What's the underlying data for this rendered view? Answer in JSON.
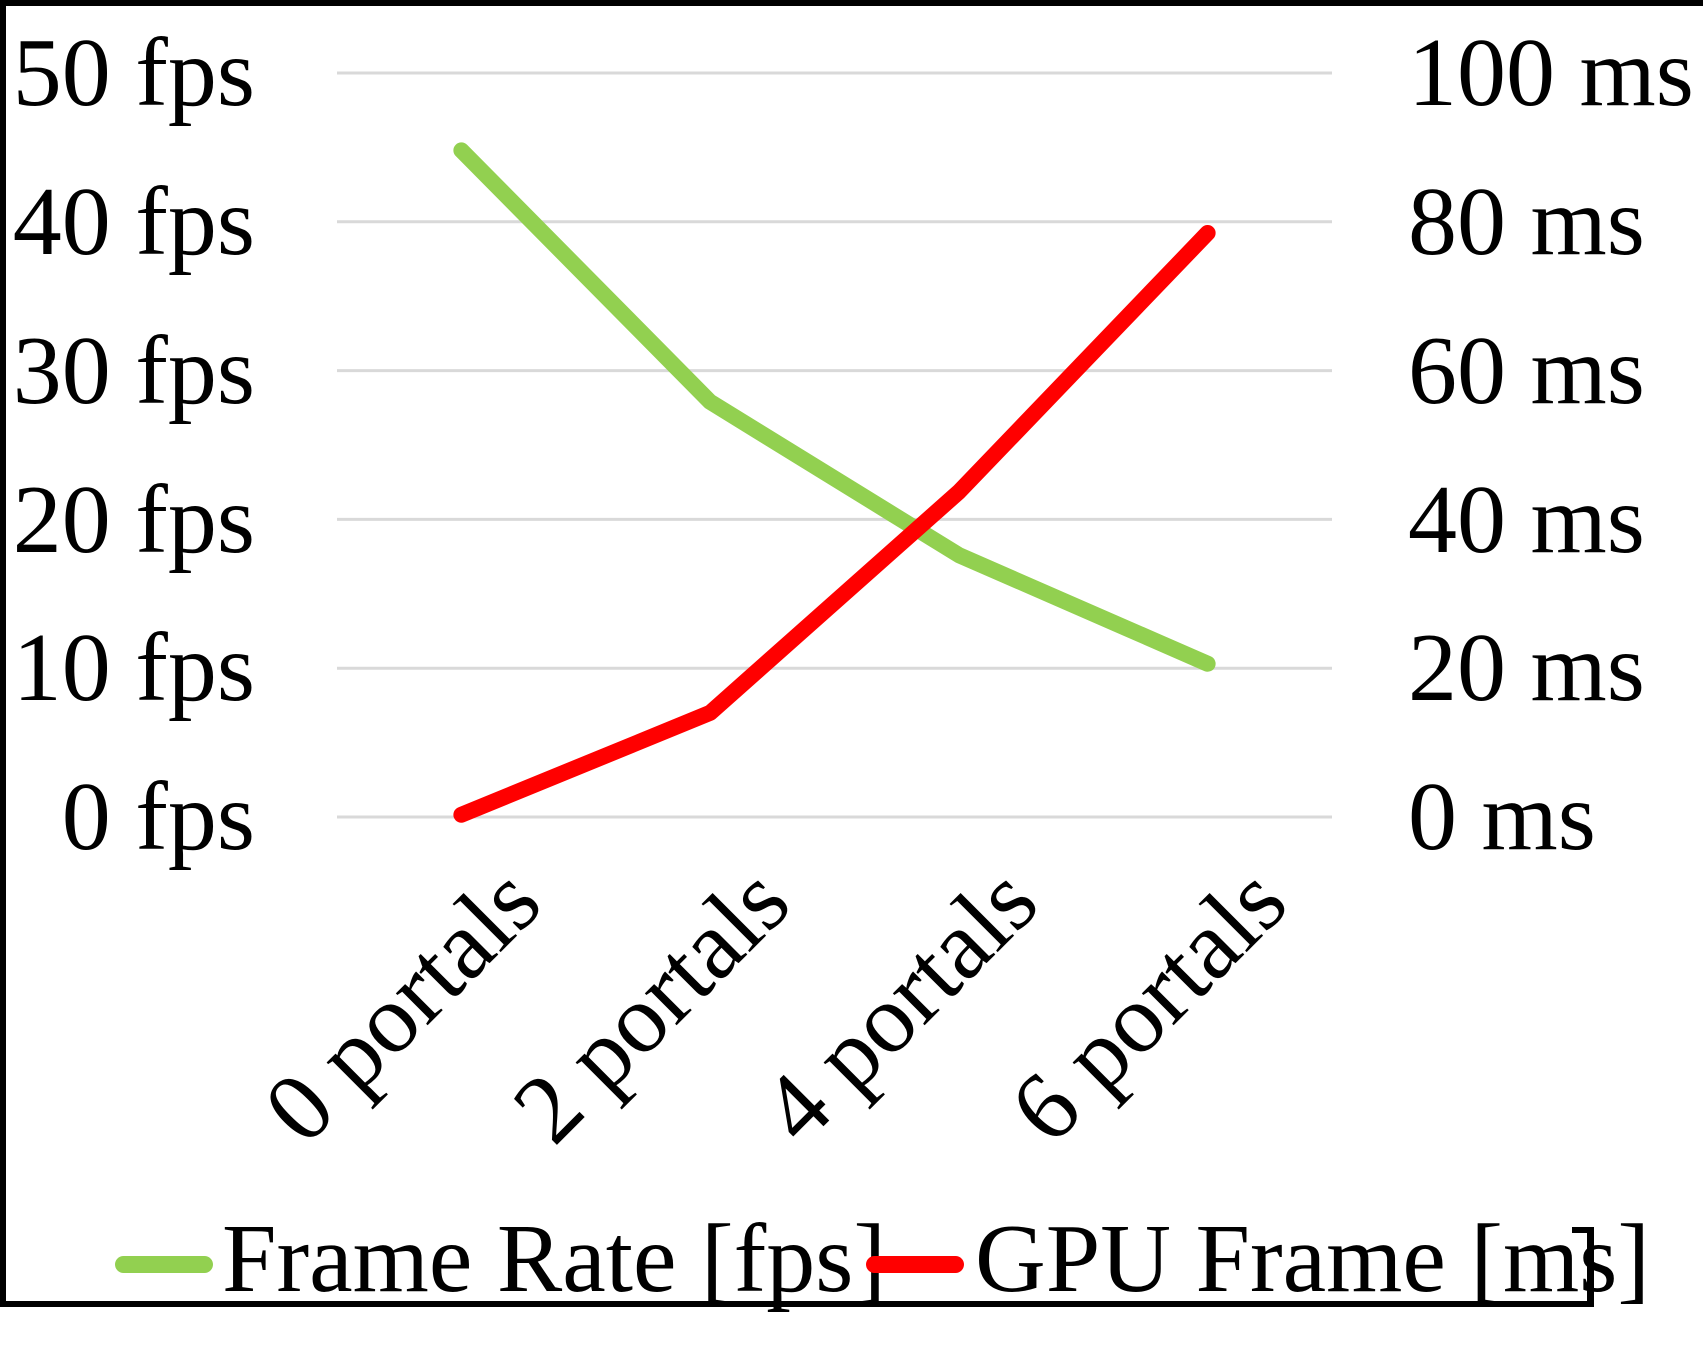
{
  "chart_data": {
    "type": "line",
    "title": "",
    "categories": [
      "0 portals",
      "2 portals",
      "4 portals",
      "6 portals"
    ],
    "series": [
      {
        "name": "Frame Rate [fps]",
        "axis": "left",
        "color": "#92d050",
        "values": [
          44.8,
          27.9,
          17.6,
          10.3
        ]
      },
      {
        "name": "GPU Frame [ms]",
        "axis": "right",
        "color": "#ff0000",
        "values": [
          0.3,
          14.0,
          43.7,
          78.5
        ]
      }
    ],
    "left_axis": {
      "unit": "fps",
      "min": 0,
      "max": 50,
      "ticks": [
        "0 fps",
        "10 fps",
        "20 fps",
        "30 fps",
        "40 fps",
        "50 fps"
      ]
    },
    "right_axis": {
      "unit": "ms",
      "min": 0,
      "max": 100,
      "ticks": [
        "0 ms",
        "20 ms",
        "40 ms",
        "60 ms",
        "80 ms",
        "100 ms"
      ]
    },
    "grid": true,
    "gridline_color": "#d9d9d9",
    "legend_position": "bottom"
  },
  "legend": {
    "items": [
      {
        "label": "Frame Rate [fps]",
        "color": "#92d050"
      },
      {
        "label": "GPU Frame [ms]",
        "color": "#ff0000"
      }
    ]
  }
}
